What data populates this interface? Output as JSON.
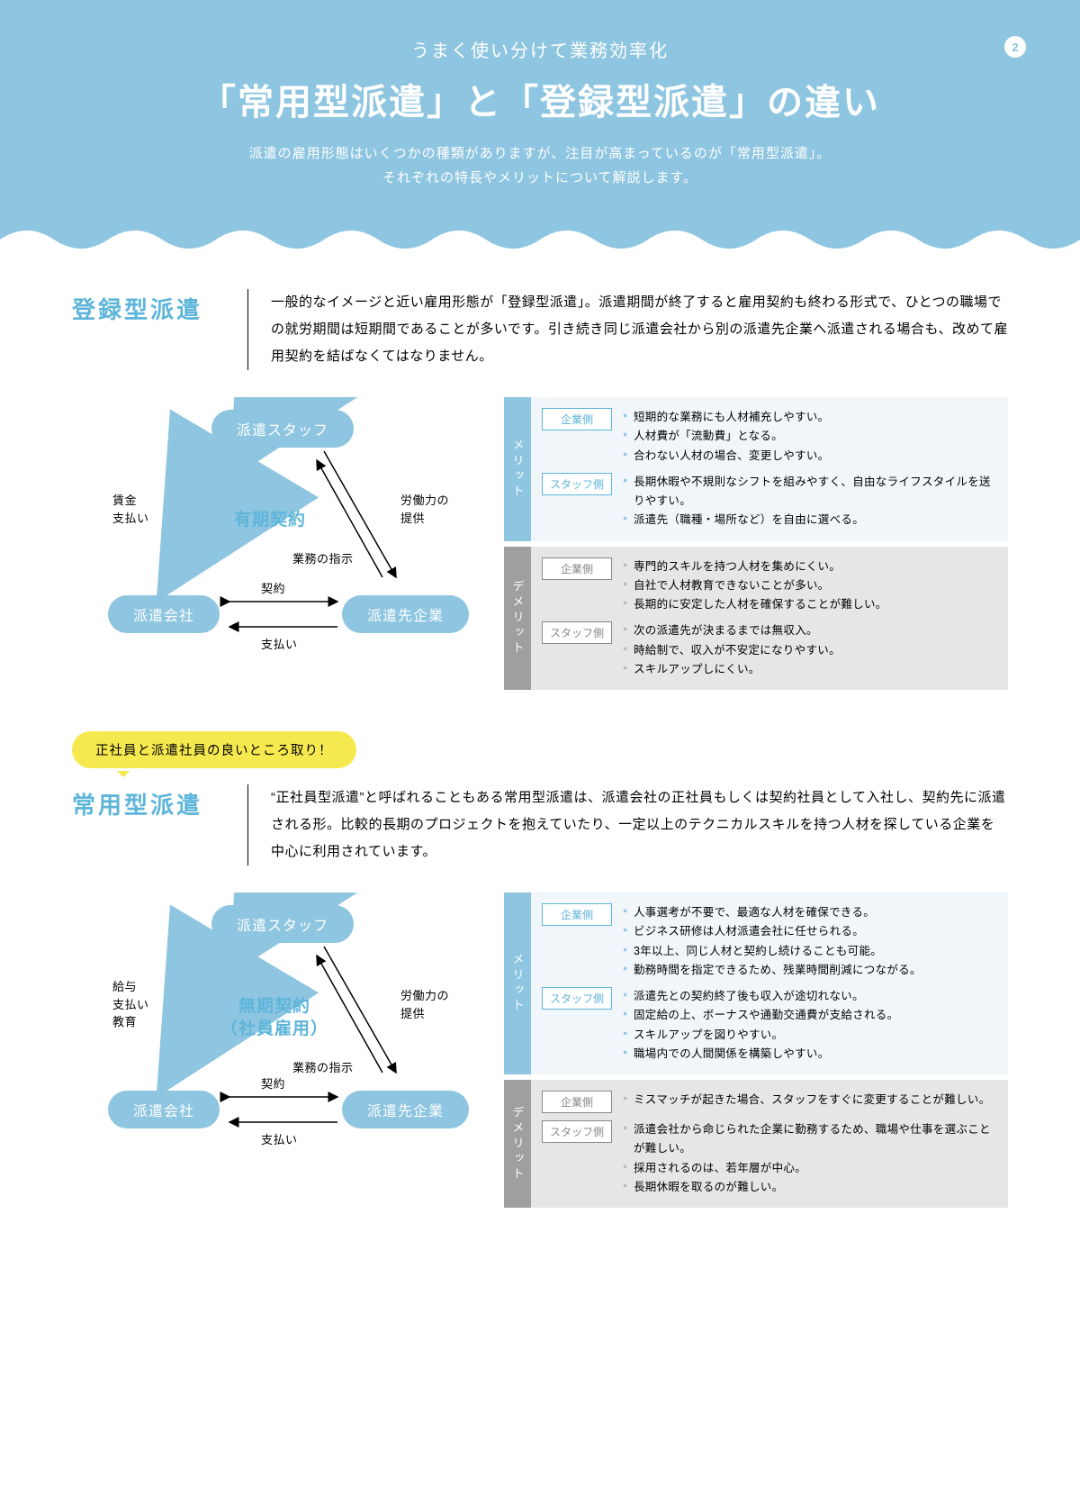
{
  "header": {
    "subtitle": "うまく使い分けて業務効率化",
    "title": "「常用型派遣」と「登録型派遣」の違い",
    "intro1": "派遣の雇用形態はいくつかの種類がありますが、注目が高まっているのが「常用型派遣」。",
    "intro2": "それぞれの特長やメリットについて解説します。",
    "page_number": "2"
  },
  "colors": {
    "brand": "#8ec5e0",
    "brand_text": "#5eb5da",
    "yellow": "#f6e94f",
    "grey": "#9f9f9f"
  },
  "section1": {
    "title": "登録型派遣",
    "desc": "一般的なイメージと近い雇用形態が「登録型派遣」。派遣期間が終了すると雇用契約も終わる形式で、ひとつの職場での就労期間は短期間であることが多いです。引き続き同じ派遣会社から別の派遣先企業へ派遣される場合も、改めて雇用契約を結ばなくてはなりません。",
    "diagram": {
      "node_top": "派遣スタッフ",
      "node_left": "派遣会社",
      "node_right": "派遣先企業",
      "center": "有期契約",
      "label_left": "賃金\n支払い",
      "label_right": "労働力の\n提供",
      "label_mid": "業務の指示",
      "label_bottom_a": "契約",
      "label_bottom_b": "支払い"
    },
    "merit": {
      "title": "メリット",
      "rows": [
        {
          "tag": "企業側",
          "items": [
            "短期的な業務にも人材補充しやすい。",
            "人材費が「流動費」となる。",
            "合わない人材の場合、変更しやすい。"
          ]
        },
        {
          "tag": "スタッフ側",
          "items": [
            "長期休暇や不規則なシフトを組みやすく、自由なライフスタイルを送りやすい。",
            "派遣先（職種・場所など）を自由に選べる。"
          ]
        }
      ]
    },
    "demerit": {
      "title": "デメリット",
      "rows": [
        {
          "tag": "企業側",
          "items": [
            "専門的スキルを持つ人材を集めにくい。",
            "自社で人材教育できないことが多い。",
            "長期的に安定した人材を確保することが難しい。"
          ]
        },
        {
          "tag": "スタッフ側",
          "items": [
            "次の派遣先が決まるまでは無収入。",
            "時給制で、収入が不安定になりやすい。",
            "スキルアップしにくい。"
          ]
        }
      ]
    }
  },
  "section2": {
    "callout": "正社員と派遣社員の良いところ取り！",
    "title": "常用型派遣",
    "desc": "“正社員型派遣”と呼ばれることもある常用型派遣は、派遣会社の正社員もしくは契約社員として入社し、契約先に派遣される形。比較的長期のプロジェクトを抱えていたり、一定以上のテクニカルスキルを持つ人材を探している企業を中心に利用されています。",
    "diagram": {
      "node_top": "派遣スタッフ",
      "node_left": "派遣会社",
      "node_right": "派遣先企業",
      "center": "無期契約\n（社員雇用）",
      "label_left": "給与\n支払い\n教育",
      "label_right": "労働力の\n提供",
      "label_mid": "業務の指示",
      "label_bottom_a": "契約",
      "label_bottom_b": "支払い"
    },
    "merit": {
      "title": "メリット",
      "rows": [
        {
          "tag": "企業側",
          "items": [
            "人事選考が不要で、最適な人材を確保できる。",
            "ビジネス研修は人材派遣会社に任せられる。",
            "3年以上、同じ人材と契約し続けることも可能。",
            "勤務時間を指定できるため、残業時間削減につながる。"
          ]
        },
        {
          "tag": "スタッフ側",
          "items": [
            "派遣先との契約終了後も収入が途切れない。",
            "固定給の上、ボーナスや通勤交通費が支給される。",
            "スキルアップを図りやすい。",
            "職場内での人間関係を構築しやすい。"
          ]
        }
      ]
    },
    "demerit": {
      "title": "デメリット",
      "rows": [
        {
          "tag": "企業側",
          "items": [
            "ミスマッチが起きた場合、スタッフをすぐに変更することが難しい。"
          ]
        },
        {
          "tag": "スタッフ側",
          "items": [
            "派遣会社から命じられた企業に勤務するため、職場や仕事を選ぶことが難しい。",
            "採用されるのは、若年層が中心。",
            "長期休暇を取るのが難しい。"
          ]
        }
      ]
    }
  }
}
